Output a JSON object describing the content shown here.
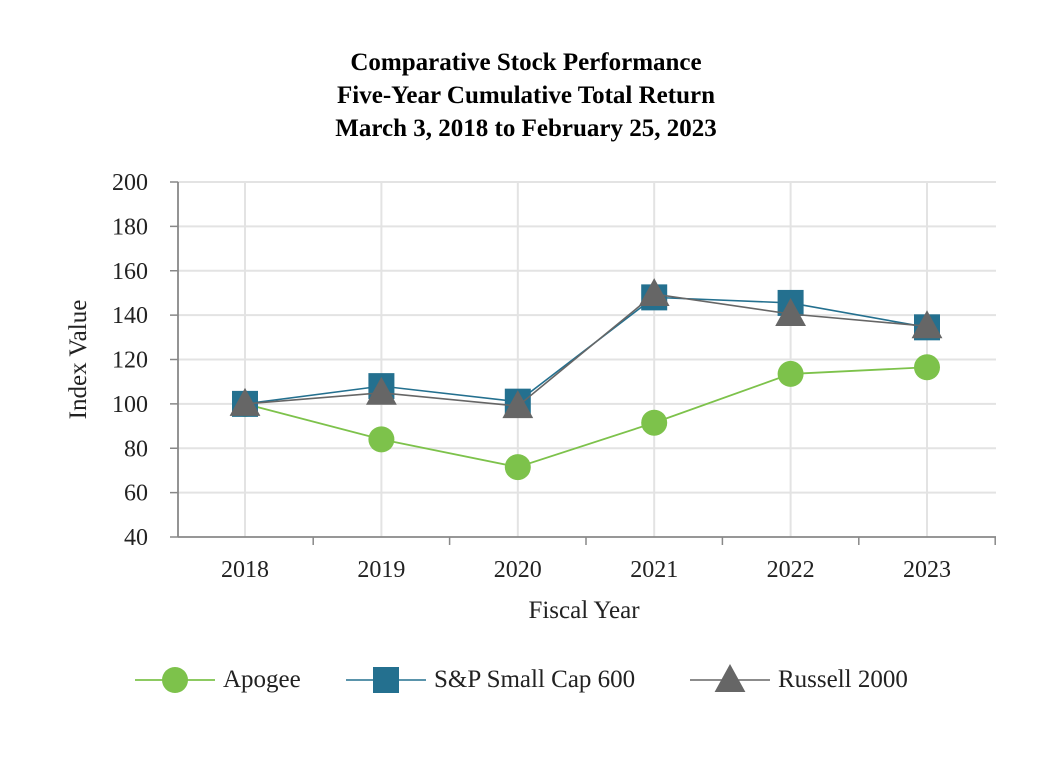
{
  "chart_data": {
    "type": "line",
    "title": [
      "Comparative Stock Performance",
      "Five-Year Cumulative Total Return",
      "March 3, 2018 to February 25, 2023"
    ],
    "xlabel": "Fiscal Year",
    "ylabel": "Index Value",
    "categories": [
      "2018",
      "2019",
      "2020",
      "2021",
      "2022",
      "2023"
    ],
    "ylim": [
      40,
      200
    ],
    "yticks": [
      40,
      60,
      80,
      100,
      120,
      140,
      160,
      180,
      200
    ],
    "grid": true,
    "legend": "bottom",
    "series": [
      {
        "name": "Apogee",
        "marker": "circle",
        "color": "#7dc24b",
        "values": [
          100,
          84,
          71.5,
          91.5,
          113.5,
          116.5
        ]
      },
      {
        "name": "S&P Small Cap 600",
        "marker": "square",
        "color": "#24708f",
        "values": [
          100,
          108,
          101,
          148,
          145.5,
          134.5
        ]
      },
      {
        "name": "Russell 2000",
        "marker": "triangle",
        "color": "#666666",
        "values": [
          100,
          105,
          99,
          149.5,
          140.5,
          135
        ]
      }
    ]
  }
}
